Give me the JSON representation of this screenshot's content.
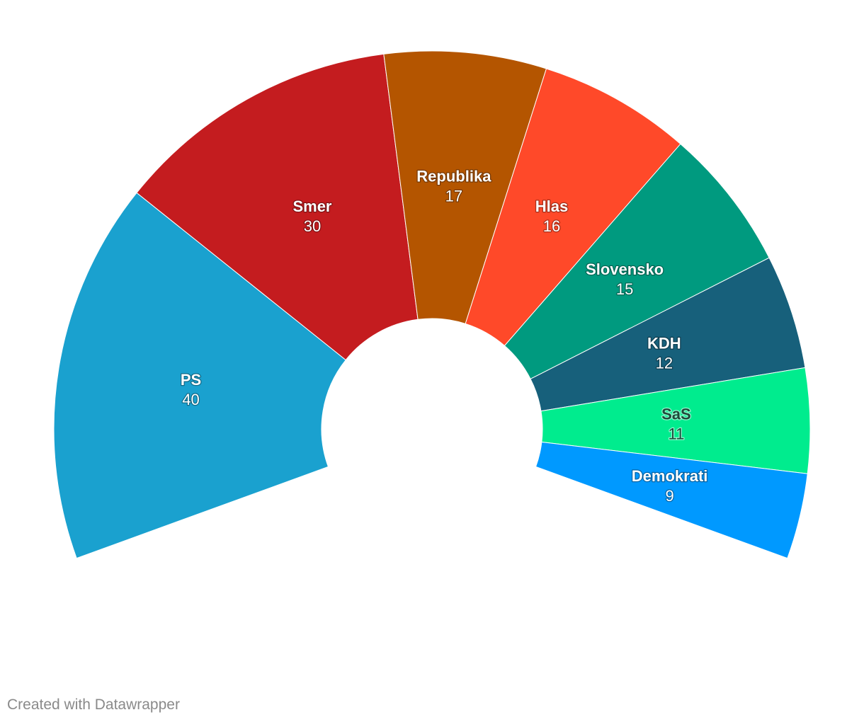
{
  "chart_data": {
    "type": "pie",
    "variant": "parliament-arc",
    "series": [
      {
        "name": "PS",
        "value": 40,
        "color": "#1aa1cf"
      },
      {
        "name": "Smer",
        "value": 30,
        "color": "#c41c1f"
      },
      {
        "name": "Republika",
        "value": 17,
        "color": "#b45500"
      },
      {
        "name": "Hlas",
        "value": 16,
        "color": "#ff4929"
      },
      {
        "name": "Slovensko",
        "value": 15,
        "color": "#009a7f"
      },
      {
        "name": "KDH",
        "value": 12,
        "color": "#17607b"
      },
      {
        "name": "SaS",
        "value": 11,
        "color": "#00ec8e",
        "label_color": "dark"
      },
      {
        "name": "Demokrati",
        "value": 9,
        "color": "#0099ff"
      }
    ]
  },
  "footer": {
    "credit": "Created with Datawrapper"
  }
}
